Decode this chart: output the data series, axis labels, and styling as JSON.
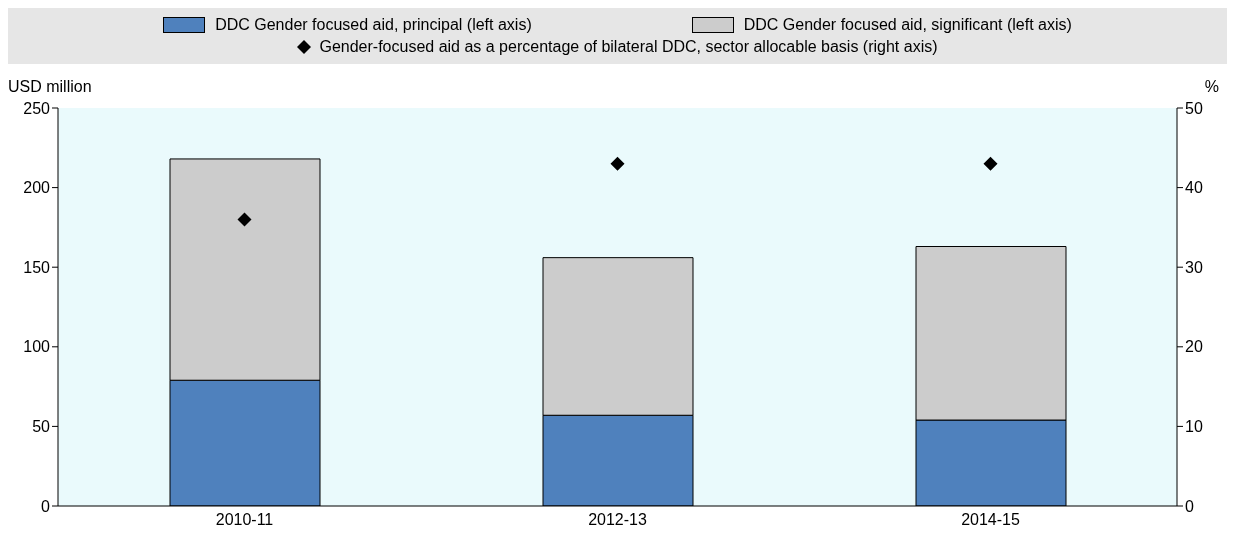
{
  "chart_data": {
    "type": "bar",
    "categories": [
      "2010-11",
      "2012-13",
      "2014-15"
    ],
    "stacked": true,
    "ylabel": "USD million",
    "y2label": "%",
    "ylim": [
      0,
      250
    ],
    "yticks": [
      0,
      50,
      100,
      150,
      200,
      250
    ],
    "y2lim": [
      0,
      50
    ],
    "y2ticks": [
      0,
      10,
      20,
      30,
      40,
      50
    ],
    "legend": "top",
    "series": [
      {
        "name": "DDC Gender focused aid, principal (left axis)",
        "color": "#4f81bd",
        "values": [
          79,
          57,
          54
        ]
      },
      {
        "name": "DDC Gender focused aid, significant (left axis)",
        "color": "#cccccc",
        "values": [
          139,
          99,
          109
        ]
      },
      {
        "name": "Gender-focused aid as a percentage of bilateral DDC, sector allocable basis (right axis)",
        "type": "scatter",
        "axis": "y2",
        "marker": "diamond",
        "color": "#000000",
        "values": [
          36,
          43,
          43
        ]
      }
    ]
  }
}
